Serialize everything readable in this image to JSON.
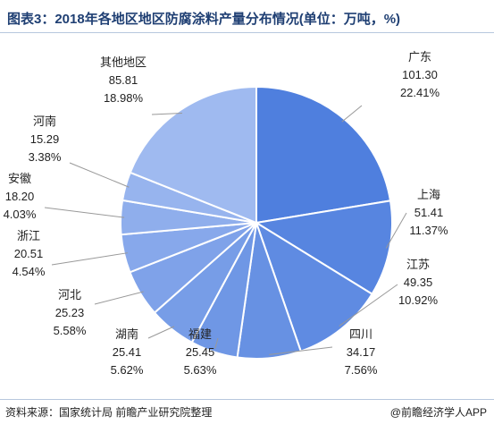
{
  "title": "图表3：2018年各地区地区防腐涂料产量分布情况(单位：万吨，%)",
  "source": "资料来源：国家统计局 前瞻产业研究院整理",
  "brand": "@前瞻经济学人APP",
  "colors": {
    "slice_start": "#4f7fde",
    "slice_end": "#9fbaf0",
    "leader": "#999999",
    "title": "#1f3f73"
  },
  "chart_data": {
    "type": "pie",
    "title": "图表3：2018年各地区地区防腐涂料产量分布情况(单位：万吨，%)",
    "unit": "万吨",
    "categories": [
      "广东",
      "上海",
      "江苏",
      "四川",
      "福建",
      "湖南",
      "河北",
      "浙江",
      "安徽",
      "河南",
      "其他地区"
    ],
    "values": [
      101.3,
      51.41,
      49.35,
      34.17,
      25.45,
      25.41,
      25.23,
      20.51,
      18.2,
      15.29,
      85.81
    ],
    "value_labels": [
      "101.30",
      "51.41",
      "49.35",
      "34.17",
      "25.45",
      "25.41",
      "25.23",
      "20.51",
      "18.20",
      "15.29",
      "85.81"
    ],
    "percent_labels": [
      "22.41%",
      "11.37%",
      "10.92%",
      "7.56%",
      "5.63%",
      "5.62%",
      "5.58%",
      "4.54%",
      "4.03%",
      "3.38%",
      "18.98%"
    ],
    "legend": "none"
  }
}
